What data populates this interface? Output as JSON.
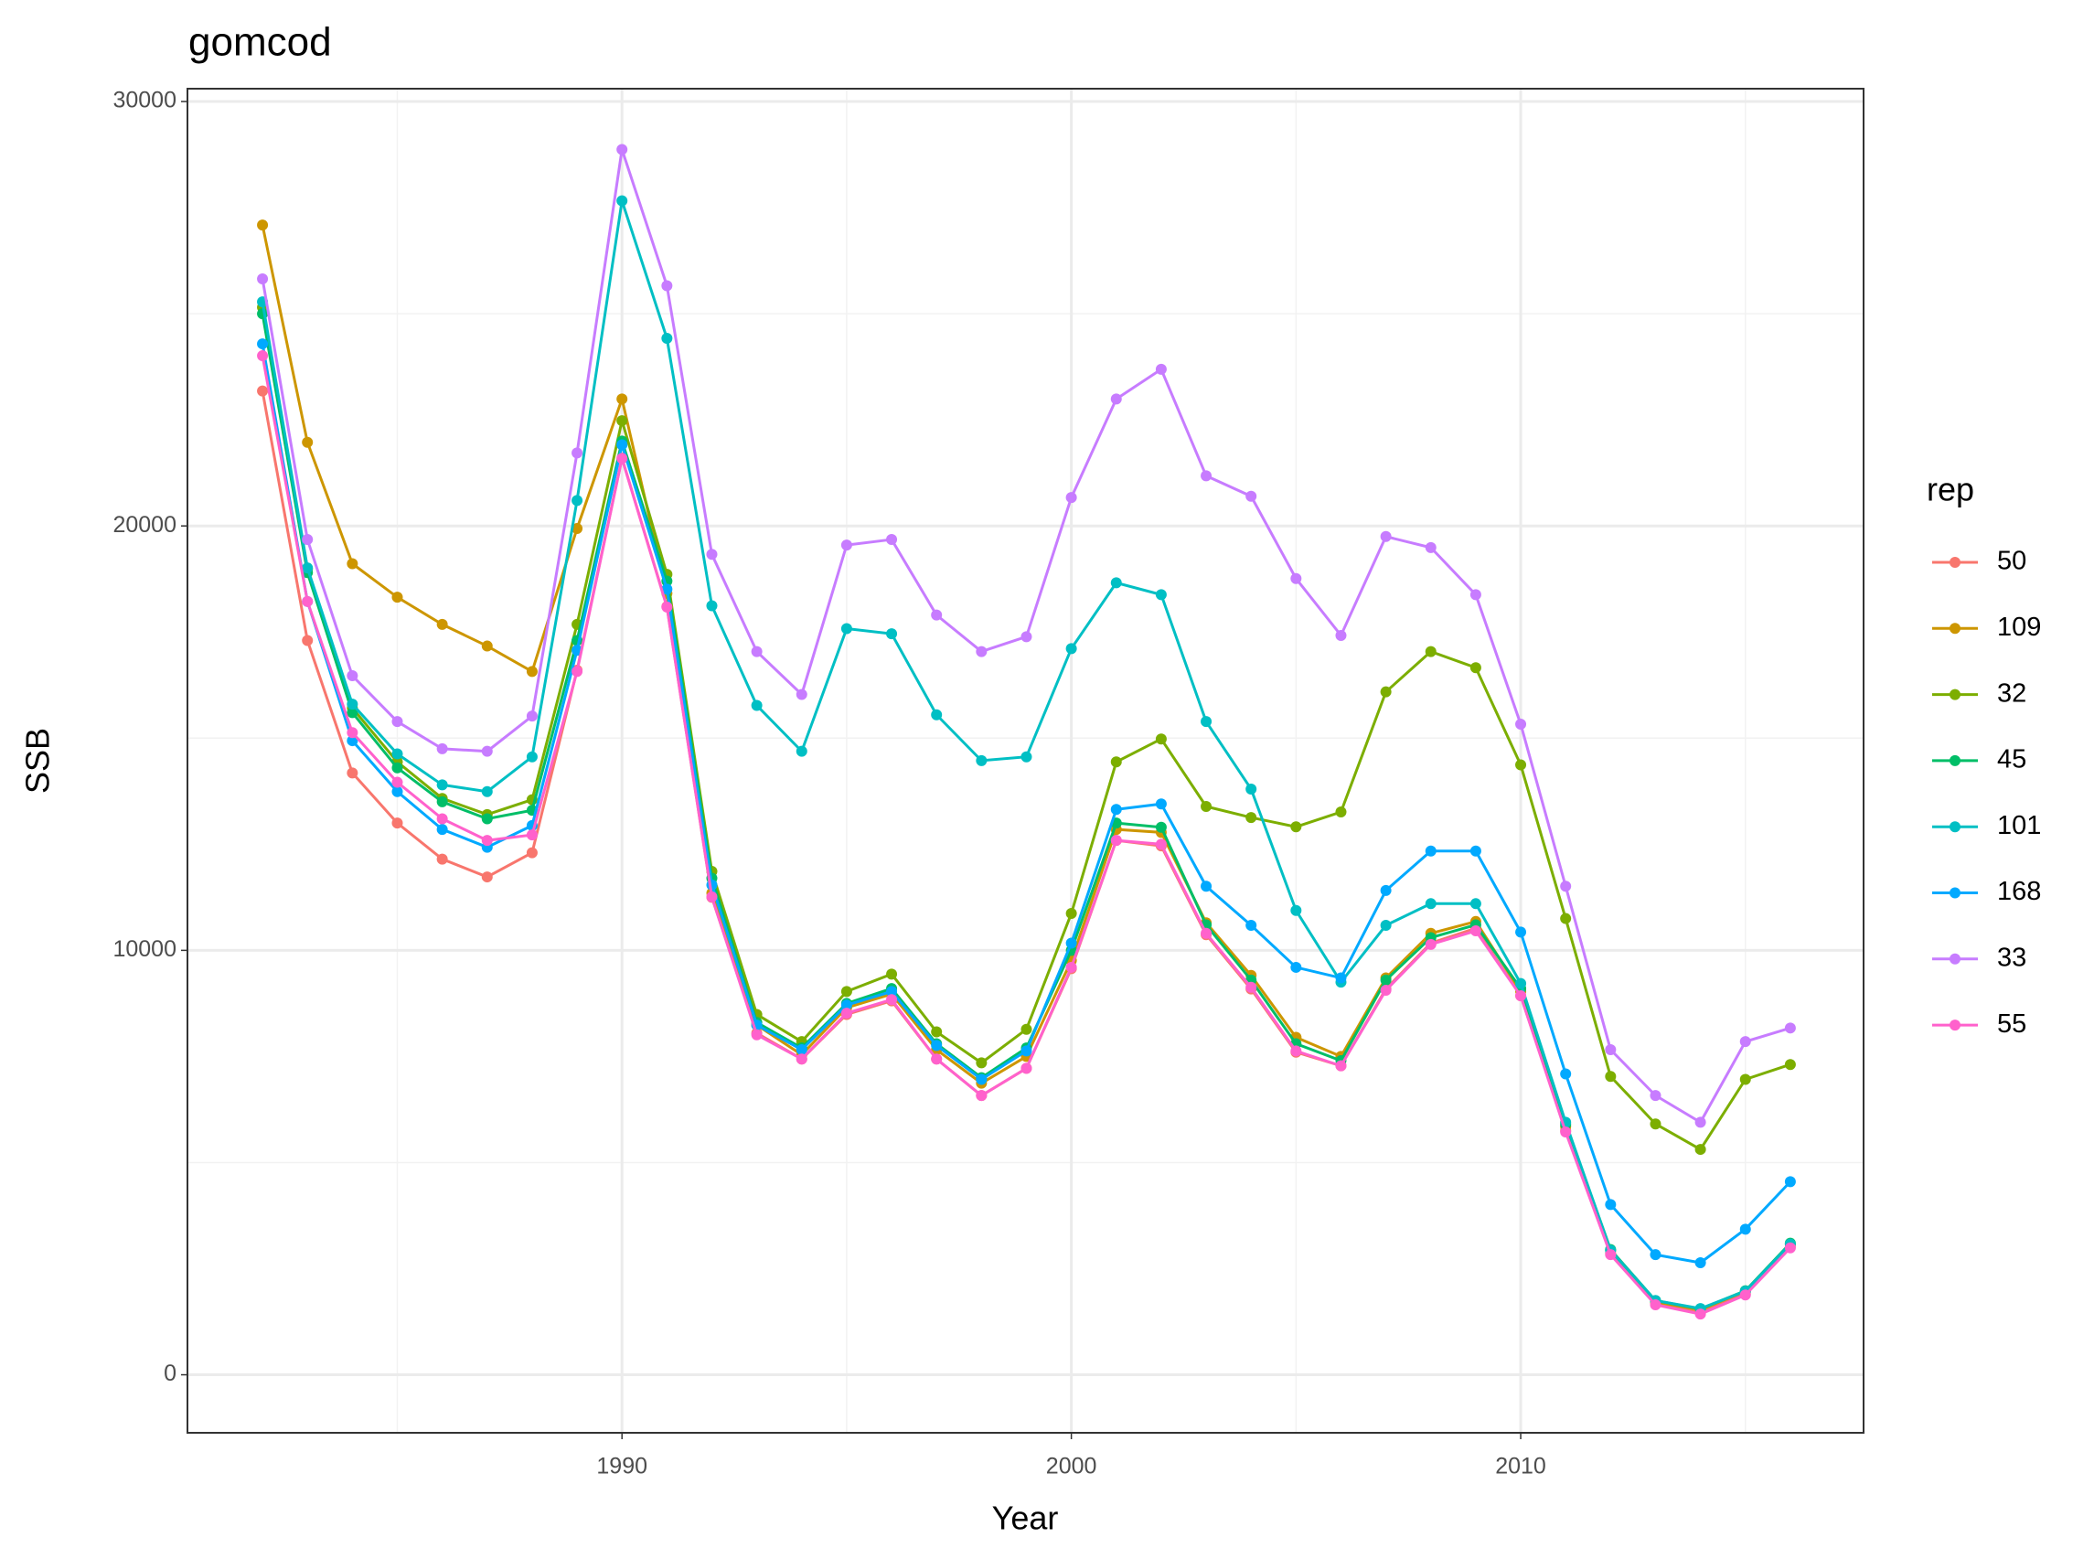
{
  "chart_data": {
    "type": "line",
    "title": "gomcod",
    "x_label": "Year",
    "y_label": "SSB",
    "legend_title": "rep",
    "x": [
      1982,
      1983,
      1984,
      1985,
      1986,
      1987,
      1988,
      1989,
      1990,
      1991,
      1992,
      1993,
      1994,
      1995,
      1996,
      1997,
      1998,
      1999,
      2000,
      2001,
      2002,
      2003,
      2004,
      2005,
      2006,
      2007,
      2008,
      2009,
      2010,
      2011,
      2012,
      2013,
      2014,
      2015,
      2016
    ],
    "xlim": [
      1980.33,
      2017.63
    ],
    "xticks": [
      1990,
      2000,
      2010
    ],
    "ylim": [
      -1367,
      30302
    ],
    "yticks": [
      0,
      10000,
      20000,
      30000
    ],
    "grid": true,
    "legend_position": "right",
    "markers": true,
    "series": [
      {
        "name": "50",
        "color": "#F8766D",
        "values": [
          23180,
          17300,
          14180,
          13000,
          12150,
          11730,
          12300,
          16600,
          21600,
          18100,
          11250,
          8050,
          7440,
          8490,
          8810,
          7440,
          6580,
          7220,
          9570,
          12590,
          12460,
          10370,
          9090,
          7600,
          7280,
          9090,
          10170,
          10520,
          8930,
          5750,
          2860,
          1690,
          1460,
          1910,
          3020
        ]
      },
      {
        "name": "109",
        "color": "#CD9600",
        "values": [
          27090,
          21970,
          19110,
          18320,
          17680,
          17170,
          16570,
          19940,
          22990,
          18410,
          11350,
          8240,
          7540,
          8650,
          8970,
          7660,
          6870,
          7500,
          9760,
          12850,
          12780,
          10650,
          9410,
          7950,
          7500,
          9350,
          10400,
          10680,
          9030,
          5850,
          2930,
          1720,
          1530,
          1970,
          3080
        ]
      },
      {
        "name": "32",
        "color": "#7CAE00",
        "values": [
          25150,
          18980,
          15710,
          14440,
          13580,
          13200,
          13550,
          17680,
          22480,
          18860,
          11860,
          8490,
          7850,
          9030,
          9440,
          8080,
          7350,
          8140,
          10870,
          14440,
          14980,
          13390,
          13130,
          12910,
          13260,
          16090,
          17040,
          16660,
          14370,
          10750,
          7030,
          5910,
          5310,
          6960,
          7310
        ]
      },
      {
        "name": "45",
        "color": "#00BE67",
        "values": [
          25000,
          18900,
          15600,
          14300,
          13500,
          13100,
          13300,
          17300,
          22000,
          18700,
          11700,
          8300,
          7700,
          8750,
          9100,
          7800,
          7000,
          7700,
          10000,
          13000,
          12900,
          10600,
          9300,
          7800,
          7400,
          9300,
          10300,
          10600,
          9100,
          5900,
          2950,
          1750,
          1550,
          1980,
          3100
        ]
      },
      {
        "name": "101",
        "color": "#00BFC4",
        "values": [
          25280,
          19010,
          15800,
          14630,
          13900,
          13740,
          14560,
          20600,
          27660,
          24420,
          18120,
          15770,
          14690,
          17580,
          17460,
          15550,
          14470,
          14560,
          17110,
          18660,
          18380,
          15390,
          13800,
          10940,
          9250,
          10590,
          11100,
          11100,
          9220,
          5950,
          2930,
          1750,
          1560,
          1970,
          3080
        ]
      },
      {
        "name": "168",
        "color": "#00A9FF",
        "values": [
          24290,
          18220,
          14940,
          13740,
          12850,
          12430,
          12940,
          17070,
          21910,
          18510,
          11540,
          8240,
          7660,
          8710,
          9030,
          7760,
          6960,
          7630,
          10170,
          13320,
          13450,
          11510,
          10590,
          9600,
          9350,
          11410,
          12340,
          12340,
          10430,
          7090,
          4010,
          2830,
          2640,
          3430,
          4550
        ]
      },
      {
        "name": "33",
        "color": "#C77CFF",
        "values": [
          25820,
          19680,
          16470,
          15390,
          14750,
          14690,
          15520,
          21720,
          28870,
          25660,
          19330,
          17040,
          16030,
          19550,
          19680,
          17900,
          17040,
          17390,
          20670,
          22990,
          23690,
          21180,
          20700,
          18760,
          17420,
          19750,
          19490,
          18380,
          15330,
          11510,
          7660,
          6580,
          5950,
          7850,
          8170
        ]
      },
      {
        "name": "55",
        "color": "#FF61CC",
        "values": [
          24010,
          18220,
          15130,
          13960,
          13100,
          12590,
          12720,
          16570,
          21590,
          18090,
          11260,
          8010,
          7440,
          8520,
          8840,
          7440,
          6580,
          7220,
          9600,
          12590,
          12500,
          10400,
          9130,
          7630,
          7280,
          9060,
          10140,
          10460,
          8930,
          5720,
          2830,
          1650,
          1430,
          1880,
          2990
        ]
      }
    ]
  }
}
